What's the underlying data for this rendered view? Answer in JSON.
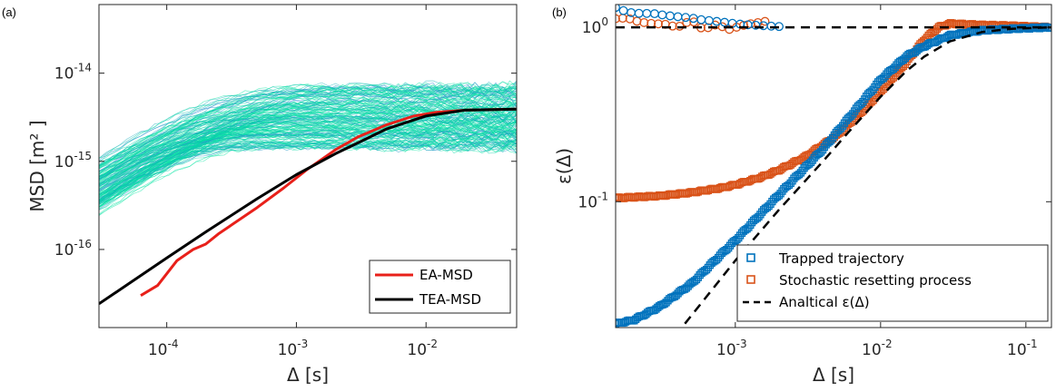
{
  "chart_data": [
    {
      "type": "line",
      "panel_label": "(a)",
      "xlabel": "Δ [s]",
      "ylabel": "MSD [m² ]",
      "xscale": "log",
      "yscale": "log",
      "xlim": [
        3e-05,
        0.05
      ],
      "ylim": [
        1.3e-17,
        6e-14
      ],
      "x_ticks": [
        {
          "value": 0.0001,
          "base": "10",
          "exp": "-4"
        },
        {
          "value": 0.001,
          "base": "10",
          "exp": "-3"
        },
        {
          "value": 0.01,
          "base": "10",
          "exp": "-2"
        }
      ],
      "y_ticks": [
        {
          "value": 1e-16,
          "base": "10",
          "exp": "-16"
        },
        {
          "value": 1e-15,
          "base": "10",
          "exp": "-15"
        },
        {
          "value": 1e-14,
          "base": "10",
          "exp": "-14"
        }
      ],
      "grid": false,
      "legend_position": "bottom-right",
      "colors": {
        "ensemble_a": "#00e6a0",
        "ensemble_b": "#2e7fd6",
        "ea": "#e8201a",
        "tea": "#000000"
      },
      "ensemble": {
        "count": 180,
        "D_range": [
          4e-12,
          2.2e-11
        ],
        "plateau_range": [
          1.4e-15,
          7.5e-15
        ]
      },
      "series": [
        {
          "name": "EA-MSD",
          "x": [
            6.3e-05,
            8.5e-05,
            0.00012,
            0.00016,
            0.0002,
            0.00025,
            0.0003,
            0.0005,
            0.0008,
            0.0012,
            0.002,
            0.003,
            0.005,
            0.008,
            0.012,
            0.02,
            0.03,
            0.05
          ],
          "y": [
            3e-17,
            3.9e-17,
            7.5e-17,
            1e-16,
            1.15e-16,
            1.5e-16,
            1.8e-16,
            3e-16,
            5e-16,
            8e-16,
            1.35e-15,
            1.9e-15,
            2.6e-15,
            3.25e-15,
            3.6e-15,
            3.8e-15,
            3.85e-15,
            3.9e-15
          ]
        },
        {
          "name": "TEA-MSD",
          "x": [
            3e-05,
            5e-05,
            0.0001,
            0.0002,
            0.0005,
            0.001,
            0.002,
            0.005,
            0.01,
            0.02,
            0.05
          ],
          "y": [
            2.42e-17,
            4.02e-17,
            8e-17,
            1.58e-16,
            3.77e-16,
            7.05e-16,
            1.22e-15,
            2.34e-15,
            3.27e-15,
            3.8e-15,
            3.9e-15
          ]
        }
      ]
    },
    {
      "type": "scatter",
      "panel_label": "(b)",
      "xlabel": "Δ [s]",
      "ylabel": "ε(Δ)",
      "xscale": "log",
      "yscale": "log",
      "xlim": [
        0.00015,
        0.15
      ],
      "ylim": [
        0.019,
        1.35
      ],
      "x_ticks": [
        {
          "value": 0.001,
          "base": "10",
          "exp": "-3"
        },
        {
          "value": 0.01,
          "base": "10",
          "exp": "-2"
        },
        {
          "value": 0.1,
          "base": "10",
          "exp": "-1"
        }
      ],
      "y_ticks": [
        {
          "value": 0.1,
          "base": "10",
          "exp": "-1"
        },
        {
          "value": 1,
          "base": "10",
          "exp": "0"
        }
      ],
      "grid": false,
      "legend_position": "bottom-right",
      "colors": {
        "trapped": "#0072bd",
        "resetting": "#d95319",
        "analytical": "#000000"
      },
      "series": [
        {
          "name": "Trapped trajectory",
          "marker": "square",
          "x": [
            0.00015,
            0.0002,
            0.0003,
            0.0005,
            0.0008,
            0.001,
            0.002,
            0.004,
            0.006,
            0.01,
            0.015,
            0.02,
            0.03,
            0.05,
            0.08,
            0.15
          ],
          "y": [
            0.02,
            0.021,
            0.025,
            0.034,
            0.05,
            0.06,
            0.11,
            0.2,
            0.3,
            0.5,
            0.68,
            0.78,
            0.9,
            0.96,
            0.98,
            1.0
          ]
        },
        {
          "name": "Stochastic resetting process",
          "marker": "square",
          "x": [
            0.00015,
            0.0003,
            0.0005,
            0.0008,
            0.001,
            0.0015,
            0.002,
            0.003,
            0.005,
            0.008,
            0.01,
            0.015,
            0.02,
            0.025,
            0.03,
            0.05,
            0.08,
            0.15
          ],
          "y": [
            0.105,
            0.108,
            0.113,
            0.12,
            0.125,
            0.138,
            0.152,
            0.18,
            0.24,
            0.35,
            0.43,
            0.63,
            0.85,
            1.0,
            1.05,
            1.03,
            1.02,
            1.0
          ]
        },
        {
          "name": "Analtical ε(Δ)",
          "marker": "dashed-line",
          "x": [
            0.00045,
            0.0006,
            0.001,
            0.002,
            0.004,
            0.006,
            0.01,
            0.015,
            0.02,
            0.03,
            0.05,
            0.08,
            0.15
          ],
          "y": [
            0.02,
            0.027,
            0.046,
            0.09,
            0.17,
            0.25,
            0.4,
            0.56,
            0.68,
            0.83,
            0.94,
            0.98,
            1.0
          ]
        },
        {
          "name": "",
          "marker": "circle",
          "color_key": "trapped",
          "x": [
            0.00015,
            0.00018,
            0.00022,
            0.00027,
            0.00033,
            0.0004,
            0.0005,
            0.0006,
            0.00075,
            0.0009,
            0.0011,
            0.0013,
            0.0016,
            0.002
          ],
          "y": [
            1.3,
            1.22,
            1.2,
            1.2,
            1.17,
            1.15,
            1.13,
            1.1,
            1.08,
            1.06,
            1.04,
            1.03,
            1.02,
            1.01
          ]
        },
        {
          "name": "",
          "marker": "circle",
          "color_key": "resetting",
          "x": [
            0.00015,
            0.00018,
            0.00022,
            0.00027,
            0.00033,
            0.0004,
            0.0005,
            0.0006,
            0.00075,
            0.0009,
            0.0011,
            0.0013,
            0.0016
          ],
          "y": [
            1.12,
            1.13,
            1.07,
            1.05,
            1.04,
            1.0,
            1.1,
            0.97,
            1.04,
            0.97,
            1.02,
            1.05,
            1.08
          ]
        },
        {
          "name": "",
          "marker": "dashed-line",
          "x": [
            0.00015,
            0.15
          ],
          "y": [
            1.0,
            1.0
          ]
        }
      ]
    }
  ]
}
